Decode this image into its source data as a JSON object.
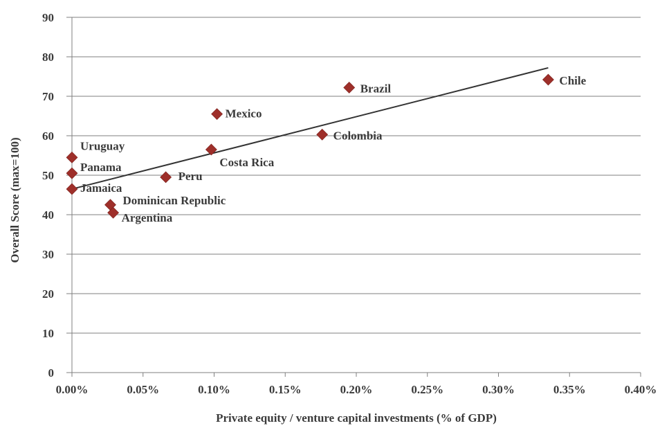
{
  "chart_data": {
    "type": "scatter",
    "xlabel": "Private equity / venture capital investments (% of GDP)",
    "ylabel": "Overall Score (max=100)",
    "xlim": [
      0,
      0.4
    ],
    "ylim": [
      0,
      90
    ],
    "x_ticks": [
      "0.00%",
      "0.05%",
      "0.10%",
      "0.15%",
      "0.20%",
      "0.25%",
      "0.30%",
      "0.35%",
      "0.40%"
    ],
    "y_ticks": [
      "0",
      "10",
      "20",
      "30",
      "40",
      "50",
      "60",
      "70",
      "80",
      "90"
    ],
    "grid": true,
    "marker_color": "#9e2f2a",
    "trendline": {
      "x": [
        0.0,
        0.335
      ],
      "y": [
        46.5,
        77.2
      ]
    },
    "points": [
      {
        "label": "Uruguay",
        "x": 0.0,
        "y": 54.5
      },
      {
        "label": "Panama",
        "x": 0.0,
        "y": 50.5
      },
      {
        "label": "Jamaica",
        "x": 0.0,
        "y": 46.5
      },
      {
        "label": "Dominican Republic",
        "x": 0.027,
        "y": 42.5
      },
      {
        "label": "Argentina",
        "x": 0.029,
        "y": 40.5
      },
      {
        "label": "Peru",
        "x": 0.066,
        "y": 49.5
      },
      {
        "label": "Costa Rica",
        "x": 0.098,
        "y": 56.5
      },
      {
        "label": "Mexico",
        "x": 0.102,
        "y": 65.5
      },
      {
        "label": "Colombia",
        "x": 0.176,
        "y": 60.3
      },
      {
        "label": "Brazil",
        "x": 0.195,
        "y": 72.2
      },
      {
        "label": "Chile",
        "x": 0.335,
        "y": 74.2
      }
    ]
  }
}
